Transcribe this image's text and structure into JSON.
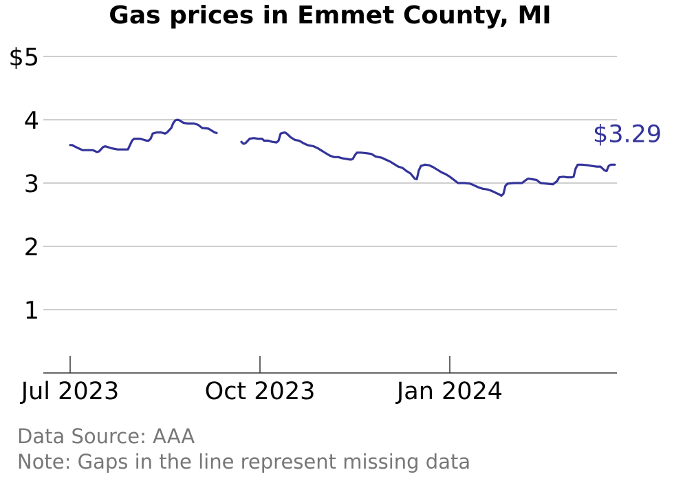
{
  "title": "Gas prices in Emmet County, MI",
  "source": "Data Source: AAA",
  "note": "Note: Gaps in the line represent missing data",
  "colors": {
    "line": "#33339a",
    "grid": "#b0b0b0",
    "axis": "#333333",
    "footer": "#777777"
  },
  "chart_data": {
    "type": "line",
    "x_unit": "date",
    "y_unit": "USD per gallon",
    "ylim": [
      0,
      5
    ],
    "y_ticks": [
      {
        "value": 1,
        "label": "1"
      },
      {
        "value": 2,
        "label": "2"
      },
      {
        "value": 3,
        "label": "3"
      },
      {
        "value": 4,
        "label": "4"
      },
      {
        "value": 5,
        "label": "$5"
      }
    ],
    "xlim": [
      "2023-06-18",
      "2024-03-22"
    ],
    "x_ticks": [
      {
        "date": "2023-07-01",
        "label": "Jul 2023"
      },
      {
        "date": "2023-10-01",
        "label": "Oct 2023"
      },
      {
        "date": "2024-01-01",
        "label": "Jan 2024"
      }
    ],
    "grid": "horizontal",
    "end_label": "$3.29",
    "series": [
      {
        "segments": [
          [
            [
              "2023-07-01",
              3.6
            ],
            [
              "2023-07-02",
              3.6
            ],
            [
              "2023-07-03",
              3.58
            ],
            [
              "2023-07-05",
              3.55
            ],
            [
              "2023-07-07",
              3.52
            ],
            [
              "2023-07-10",
              3.52
            ],
            [
              "2023-07-12",
              3.52
            ],
            [
              "2023-07-14",
              3.49
            ],
            [
              "2023-07-15",
              3.5
            ],
            [
              "2023-07-17",
              3.57
            ],
            [
              "2023-07-18",
              3.58
            ],
            [
              "2023-07-21",
              3.55
            ],
            [
              "2023-07-24",
              3.53
            ],
            [
              "2023-07-27",
              3.53
            ],
            [
              "2023-07-29",
              3.53
            ],
            [
              "2023-07-30",
              3.6
            ],
            [
              "2023-07-31",
              3.67
            ],
            [
              "2023-08-01",
              3.7
            ],
            [
              "2023-08-04",
              3.7
            ],
            [
              "2023-08-07",
              3.67
            ],
            [
              "2023-08-08",
              3.67
            ],
            [
              "2023-08-09",
              3.7
            ],
            [
              "2023-08-10",
              3.78
            ],
            [
              "2023-08-12",
              3.8
            ],
            [
              "2023-08-14",
              3.8
            ],
            [
              "2023-08-16",
              3.78
            ],
            [
              "2023-08-17",
              3.8
            ],
            [
              "2023-08-19",
              3.87
            ],
            [
              "2023-08-20",
              3.95
            ],
            [
              "2023-08-21",
              3.99
            ],
            [
              "2023-08-22",
              4.0
            ],
            [
              "2023-08-23",
              3.99
            ],
            [
              "2023-08-25",
              3.95
            ],
            [
              "2023-08-27",
              3.94
            ],
            [
              "2023-08-30",
              3.94
            ],
            [
              "2023-09-01",
              3.92
            ],
            [
              "2023-09-03",
              3.87
            ],
            [
              "2023-09-06",
              3.86
            ],
            [
              "2023-09-09",
              3.8
            ],
            [
              "2023-09-10",
              3.79
            ]
          ],
          [
            [
              "2023-09-22",
              3.65
            ],
            [
              "2023-09-23",
              3.62
            ],
            [
              "2023-09-24",
              3.63
            ],
            [
              "2023-09-26",
              3.7
            ],
            [
              "2023-09-28",
              3.71
            ],
            [
              "2023-09-30",
              3.7
            ],
            [
              "2023-10-02",
              3.7
            ],
            [
              "2023-10-03",
              3.67
            ],
            [
              "2023-10-05",
              3.67
            ],
            [
              "2023-10-07",
              3.65
            ],
            [
              "2023-10-09",
              3.64
            ],
            [
              "2023-10-10",
              3.67
            ],
            [
              "2023-10-11",
              3.78
            ],
            [
              "2023-10-13",
              3.8
            ],
            [
              "2023-10-14",
              3.78
            ],
            [
              "2023-10-16",
              3.72
            ],
            [
              "2023-10-18",
              3.68
            ],
            [
              "2023-10-20",
              3.67
            ],
            [
              "2023-10-22",
              3.63
            ],
            [
              "2023-10-24",
              3.6
            ],
            [
              "2023-10-27",
              3.58
            ],
            [
              "2023-10-29",
              3.55
            ],
            [
              "2023-10-31",
              3.51
            ],
            [
              "2023-11-02",
              3.47
            ],
            [
              "2023-11-04",
              3.43
            ],
            [
              "2023-11-06",
              3.41
            ],
            [
              "2023-11-08",
              3.41
            ],
            [
              "2023-11-10",
              3.39
            ],
            [
              "2023-11-12",
              3.38
            ],
            [
              "2023-11-14",
              3.37
            ],
            [
              "2023-11-15",
              3.38
            ],
            [
              "2023-11-16",
              3.44
            ],
            [
              "2023-11-17",
              3.48
            ],
            [
              "2023-11-19",
              3.48
            ],
            [
              "2023-11-22",
              3.47
            ],
            [
              "2023-11-24",
              3.46
            ],
            [
              "2023-11-26",
              3.42
            ],
            [
              "2023-11-29",
              3.4
            ],
            [
              "2023-12-01",
              3.37
            ],
            [
              "2023-12-03",
              3.34
            ],
            [
              "2023-12-05",
              3.3
            ],
            [
              "2023-12-07",
              3.26
            ],
            [
              "2023-12-09",
              3.24
            ],
            [
              "2023-12-11",
              3.19
            ],
            [
              "2023-12-13",
              3.15
            ],
            [
              "2023-12-15",
              3.07
            ],
            [
              "2023-12-16",
              3.06
            ],
            [
              "2023-12-17",
              3.2
            ],
            [
              "2023-12-18",
              3.27
            ],
            [
              "2023-12-20",
              3.29
            ],
            [
              "2023-12-22",
              3.28
            ],
            [
              "2023-12-24",
              3.25
            ],
            [
              "2023-12-26",
              3.21
            ],
            [
              "2023-12-28",
              3.17
            ],
            [
              "2023-12-30",
              3.14
            ],
            [
              "2024-01-01",
              3.1
            ],
            [
              "2024-01-03",
              3.05
            ],
            [
              "2024-01-05",
              3.0
            ],
            [
              "2024-01-08",
              3.0
            ],
            [
              "2024-01-11",
              2.99
            ],
            [
              "2024-01-13",
              2.96
            ],
            [
              "2024-01-15",
              2.93
            ],
            [
              "2024-01-17",
              2.91
            ],
            [
              "2024-01-19",
              2.9
            ],
            [
              "2024-01-21",
              2.88
            ],
            [
              "2024-01-23",
              2.85
            ],
            [
              "2024-01-25",
              2.82
            ],
            [
              "2024-01-26",
              2.8
            ],
            [
              "2024-01-27",
              2.83
            ],
            [
              "2024-01-28",
              2.96
            ],
            [
              "2024-01-29",
              2.99
            ],
            [
              "2024-02-01",
              3.0
            ],
            [
              "2024-02-05",
              3.0
            ],
            [
              "2024-02-07",
              3.05
            ],
            [
              "2024-02-08",
              3.07
            ],
            [
              "2024-02-10",
              3.06
            ],
            [
              "2024-02-12",
              3.05
            ],
            [
              "2024-02-14",
              3.0
            ],
            [
              "2024-02-17",
              2.99
            ],
            [
              "2024-02-20",
              2.98
            ],
            [
              "2024-02-22",
              3.03
            ],
            [
              "2024-02-23",
              3.09
            ],
            [
              "2024-02-25",
              3.1
            ],
            [
              "2024-02-27",
              3.09
            ],
            [
              "2024-02-29",
              3.09
            ],
            [
              "2024-03-01",
              3.1
            ],
            [
              "2024-03-02",
              3.23
            ],
            [
              "2024-03-03",
              3.29
            ],
            [
              "2024-03-05",
              3.29
            ],
            [
              "2024-03-08",
              3.28
            ],
            [
              "2024-03-10",
              3.27
            ],
            [
              "2024-03-12",
              3.26
            ],
            [
              "2024-03-14",
              3.26
            ],
            [
              "2024-03-16",
              3.2
            ],
            [
              "2024-03-17",
              3.19
            ],
            [
              "2024-03-18",
              3.27
            ],
            [
              "2024-03-19",
              3.29
            ],
            [
              "2024-03-21",
              3.29
            ]
          ]
        ]
      }
    ]
  }
}
